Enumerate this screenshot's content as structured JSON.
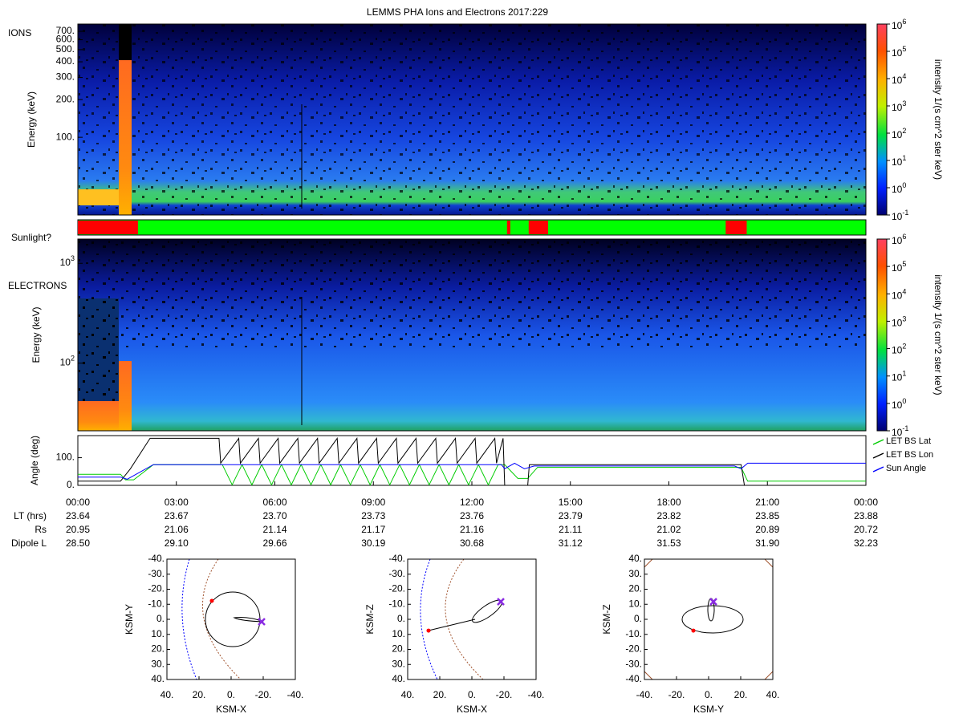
{
  "title": "LEMMS PHA Ions and Electrons  2017:229",
  "chart_data": [
    {
      "type": "heatmap",
      "label": "IONS",
      "ylabel": "Energy (keV)",
      "log": true,
      "ylim": [
        24,
        800
      ],
      "yticks": [
        {
          "value": 100,
          "label": "100."
        },
        {
          "value": 200,
          "label": "200."
        },
        {
          "value": 300,
          "label": "300."
        },
        {
          "value": 400,
          "label": "400."
        },
        {
          "value": 500,
          "label": "500."
        },
        {
          "value": 600,
          "label": "600."
        },
        {
          "value": 700,
          "label": "700."
        }
      ],
      "colorbar": {
        "label": "intensity 1/(s cm^2 ster keV)",
        "base": "10",
        "ticks": [
          -1,
          0,
          1,
          2,
          3,
          4,
          5,
          6
        ]
      }
    },
    {
      "type": "timeline",
      "label": "Sunlight?",
      "xlim": [
        0,
        24
      ],
      "color": "#00ff00",
      "segments": [
        {
          "start": 0,
          "end": 1.83,
          "color": "#ff0000"
        },
        {
          "start": 13.07,
          "end": 13.17,
          "color": "#ff0000"
        },
        {
          "start": 13.73,
          "end": 14.32,
          "color": "#ff0000"
        },
        {
          "start": 19.73,
          "end": 20.37,
          "color": "#ff0000"
        }
      ]
    },
    {
      "type": "heatmap",
      "label": "ELECTRONS",
      "ylabel": "Energy (keV)",
      "log": true,
      "ylim": [
        21,
        1750
      ],
      "yticks": [
        {
          "value": 100,
          "label": "10",
          "exponent": "2"
        },
        {
          "value": 1000,
          "label": "10",
          "exponent": "3"
        }
      ],
      "colorbar": {
        "label": "intensity 1/(s cm^2 ster keV)",
        "base": "10",
        "ticks": [
          -1,
          0,
          1,
          2,
          3,
          4,
          5,
          6
        ]
      }
    },
    {
      "type": "line",
      "ylabel": "Angle (deg)",
      "xlim": [
        0,
        24
      ],
      "ylim": [
        0,
        180
      ],
      "xticks": [
        {
          "value": 0,
          "label": "00:00"
        },
        {
          "value": 3,
          "label": "03:00"
        },
        {
          "value": 6,
          "label": "06:00"
        },
        {
          "value": 9,
          "label": "09:00"
        },
        {
          "value": 12,
          "label": "12:00"
        },
        {
          "value": 15,
          "label": "15:00"
        },
        {
          "value": 18,
          "label": "18:00"
        },
        {
          "value": 21,
          "label": "21:00"
        },
        {
          "value": 24,
          "label": "00:00"
        }
      ],
      "yticks": [
        {
          "value": 0,
          "label": "0."
        },
        {
          "value": 100,
          "label": "100."
        }
      ],
      "series": [
        {
          "name": "LET BS Lat",
          "color": "#00cc00",
          "x": [
            0,
            1.3,
            1.45,
            1.7,
            2.3,
            4.2,
            4.4,
            4.7,
            5.0,
            5.3,
            5.6,
            5.9,
            6.2,
            6.5,
            6.8,
            7.1,
            7.4,
            7.7,
            8.0,
            8.3,
            8.6,
            8.9,
            9.2,
            9.5,
            9.8,
            10.1,
            10.4,
            10.7,
            11.0,
            11.3,
            11.6,
            11.9,
            12.2,
            12.5,
            12.8,
            13.0,
            13.4,
            13.7,
            14.0,
            20.2,
            20.4,
            24
          ],
          "values": [
            40,
            40,
            20,
            20,
            75,
            75,
            75,
            2,
            75,
            2,
            75,
            2,
            75,
            2,
            75,
            2,
            75,
            2,
            75,
            2,
            75,
            2,
            75,
            2,
            75,
            2,
            75,
            2,
            75,
            2,
            75,
            2,
            75,
            2,
            75,
            75,
            25,
            25,
            65,
            65,
            15,
            15
          ]
        },
        {
          "name": "LET BS Lon",
          "color": "#000000",
          "x": [
            0,
            1.3,
            1.6,
            2.2,
            4.2,
            4.3,
            4.35,
            4.9,
            4.95,
            5.5,
            5.55,
            6.1,
            6.15,
            6.7,
            6.75,
            7.3,
            7.35,
            7.9,
            7.95,
            8.5,
            8.55,
            9.1,
            9.15,
            9.7,
            9.75,
            10.3,
            10.35,
            10.9,
            10.95,
            11.5,
            11.55,
            12.1,
            12.15,
            12.7,
            12.75,
            12.95,
            13.0,
            13.7,
            13.75,
            20.2,
            20.3,
            24
          ],
          "values": [
            15,
            15,
            60,
            170,
            170,
            170,
            80,
            170,
            80,
            170,
            80,
            170,
            80,
            170,
            80,
            170,
            80,
            170,
            80,
            170,
            80,
            170,
            80,
            170,
            80,
            170,
            80,
            170,
            80,
            170,
            80,
            170,
            80,
            170,
            80,
            170,
            0,
            0,
            75,
            75,
            0,
            0
          ]
        },
        {
          "name": "Sun Angle",
          "color": "#0000ff",
          "x": [
            0,
            1.3,
            1.5,
            2.3,
            4.3,
            12.9,
            13.0,
            13.3,
            13.6,
            13.9,
            20.0,
            20.2,
            20.4,
            24
          ],
          "values": [
            30,
            30,
            22,
            75,
            75,
            75,
            60,
            80,
            60,
            70,
            70,
            60,
            80,
            80
          ]
        }
      ]
    },
    {
      "type": "scatter",
      "xlabel": "KSM-X",
      "ylabel": "KSM-Y",
      "xlim": [
        40,
        -40
      ],
      "ylim": [
        40,
        -40
      ],
      "xticks": [
        {
          "value": 40,
          "label": "40."
        },
        {
          "value": 20,
          "label": "20."
        },
        {
          "value": 0,
          "label": "0."
        },
        {
          "value": -20,
          "label": "-20."
        },
        {
          "value": -40,
          "label": "-40."
        }
      ],
      "yticks": [
        {
          "value": -40,
          "label": "-40."
        },
        {
          "value": -30,
          "label": "-30."
        },
        {
          "value": -20,
          "label": "-20."
        },
        {
          "value": -10,
          "label": "-10."
        },
        {
          "value": 0,
          "label": "0."
        },
        {
          "value": 10,
          "label": "10."
        },
        {
          "value": 20,
          "label": "20."
        },
        {
          "value": 30,
          "label": "30."
        },
        {
          "value": 40,
          "label": "40."
        }
      ],
      "start": [
        12,
        -12.3
      ],
      "end": [
        -19,
        1.6
      ]
    },
    {
      "type": "scatter",
      "xlabel": "KSM-X",
      "ylabel": "KSM-Z",
      "xlim": [
        40,
        -40
      ],
      "ylim": [
        40,
        -40
      ],
      "xticks": [
        {
          "value": 40,
          "label": "40."
        },
        {
          "value": 20,
          "label": "20."
        },
        {
          "value": 0,
          "label": "0."
        },
        {
          "value": -20,
          "label": "-20."
        },
        {
          "value": -40,
          "label": "-40."
        }
      ],
      "yticks": [
        {
          "value": -40,
          "label": "-40."
        },
        {
          "value": -30,
          "label": "-30."
        },
        {
          "value": -20,
          "label": "-20."
        },
        {
          "value": -10,
          "label": "-10."
        },
        {
          "value": 0,
          "label": "0."
        },
        {
          "value": 10,
          "label": "10."
        },
        {
          "value": 20,
          "label": "20."
        },
        {
          "value": 30,
          "label": "30."
        },
        {
          "value": 40,
          "label": "40."
        }
      ],
      "start": [
        27,
        7.5
      ],
      "end": [
        -18,
        -11.7
      ]
    },
    {
      "type": "scatter",
      "xlabel": "KSM-Y",
      "ylabel": "KSM-Z",
      "xlim": [
        -40,
        40
      ],
      "ylim": [
        -40,
        40
      ],
      "xticks": [
        {
          "value": -40,
          "label": "-40."
        },
        {
          "value": -20,
          "label": "-20."
        },
        {
          "value": 0,
          "label": "0."
        },
        {
          "value": 20,
          "label": "20."
        },
        {
          "value": 40,
          "label": "40."
        }
      ],
      "yticks": [
        {
          "value": 40,
          "label": "40."
        },
        {
          "value": 30,
          "label": "30."
        },
        {
          "value": 20,
          "label": "20."
        },
        {
          "value": 10,
          "label": "10."
        },
        {
          "value": 0,
          "label": "0."
        },
        {
          "value": -10,
          "label": "-10."
        },
        {
          "value": -20,
          "label": "-20."
        },
        {
          "value": -30,
          "label": "-30."
        },
        {
          "value": -40,
          "label": "-40."
        }
      ],
      "start": [
        -9.5,
        -7.5
      ],
      "end": [
        3,
        11.7
      ]
    }
  ],
  "ephemeris": {
    "rows": [
      {
        "label": "LT (hrs)",
        "values": [
          "23.64",
          "23.67",
          "23.70",
          "23.73",
          "23.76",
          "23.79",
          "23.82",
          "23.85",
          "23.88"
        ]
      },
      {
        "label": "Rs",
        "values": [
          "20.95",
          "21.06",
          "21.14",
          "21.17",
          "21.16",
          "21.11",
          "21.02",
          "20.89",
          "20.72"
        ]
      },
      {
        "label": "Dipole L",
        "values": [
          "28.50",
          "29.10",
          "29.66",
          "30.19",
          "30.68",
          "31.12",
          "31.53",
          "31.90",
          "32.23"
        ]
      }
    ]
  }
}
